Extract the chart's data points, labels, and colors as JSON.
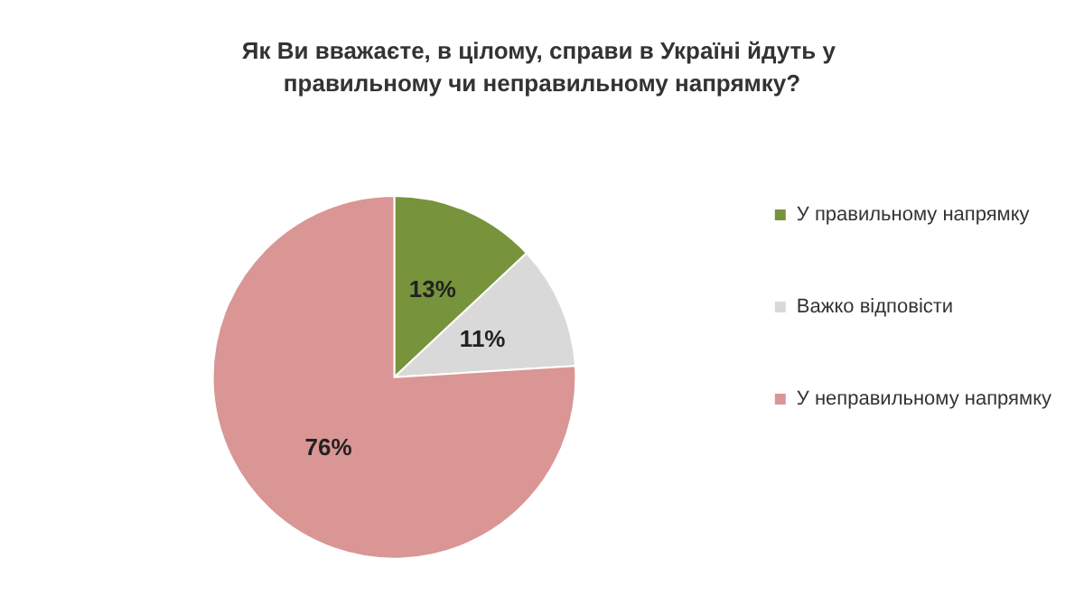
{
  "chart_data": {
    "type": "pie",
    "title": "Як Ви вважаєте, в цілому, справи в Україні йдуть у правильному чи неправильному напрямку?",
    "categories": [
      "У правильному напрямку",
      "Важко відповісти",
      "У неправильному напрямку"
    ],
    "values": [
      13,
      11,
      76
    ],
    "colors": [
      "#77933c",
      "#d9d9d9",
      "#d99694"
    ],
    "value_labels": [
      "13%",
      "11%",
      "76%"
    ],
    "legend": "right"
  }
}
